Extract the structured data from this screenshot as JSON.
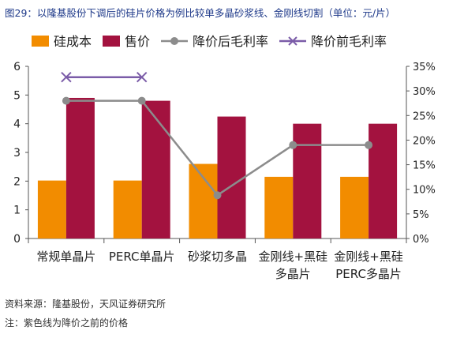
{
  "figure": {
    "title": "图29：以隆基股份下调后的硅片价格为例比较单多晶砂浆线、金刚线切割（单位：元/片）",
    "source": "资料来源：隆基股份，天风证券研究所",
    "note": "注：紫色线为降价之前的价格"
  },
  "chart_data": {
    "type": "bar",
    "categories": [
      "常规单晶片",
      "PERC单晶片",
      "砂浆切多晶",
      "金刚线+黑硅|多晶片",
      "金刚线+黑硅|PERC多晶片"
    ],
    "series": [
      {
        "name": "硅成本",
        "kind": "bar",
        "axis": "left",
        "color": "#f28c00",
        "values": [
          2.02,
          2.02,
          2.6,
          2.15,
          2.15
        ]
      },
      {
        "name": "售价",
        "kind": "bar",
        "axis": "left",
        "color": "#a3123f",
        "values": [
          4.9,
          4.8,
          4.25,
          4.0,
          4.0
        ]
      },
      {
        "name": "降价后毛利率",
        "kind": "line",
        "axis": "right",
        "color": "#8c8c8c",
        "marker": "circle",
        "values": [
          0.28,
          0.28,
          0.088,
          0.19,
          0.19
        ]
      },
      {
        "name": "降价前毛利率",
        "kind": "line",
        "axis": "right",
        "color": "#7b5ca8",
        "marker": "x",
        "values": [
          0.328,
          0.328,
          null,
          null,
          null
        ]
      }
    ],
    "y_left": {
      "min": 0,
      "max": 6,
      "ticks": [
        "0",
        "1",
        "2",
        "3",
        "4",
        "5",
        "6"
      ]
    },
    "y_right": {
      "min": 0,
      "max": 0.35,
      "ticks": [
        "0%",
        "5%",
        "10%",
        "15%",
        "20%",
        "25%",
        "30%",
        "35%"
      ]
    },
    "legend": "top",
    "grid": false
  }
}
